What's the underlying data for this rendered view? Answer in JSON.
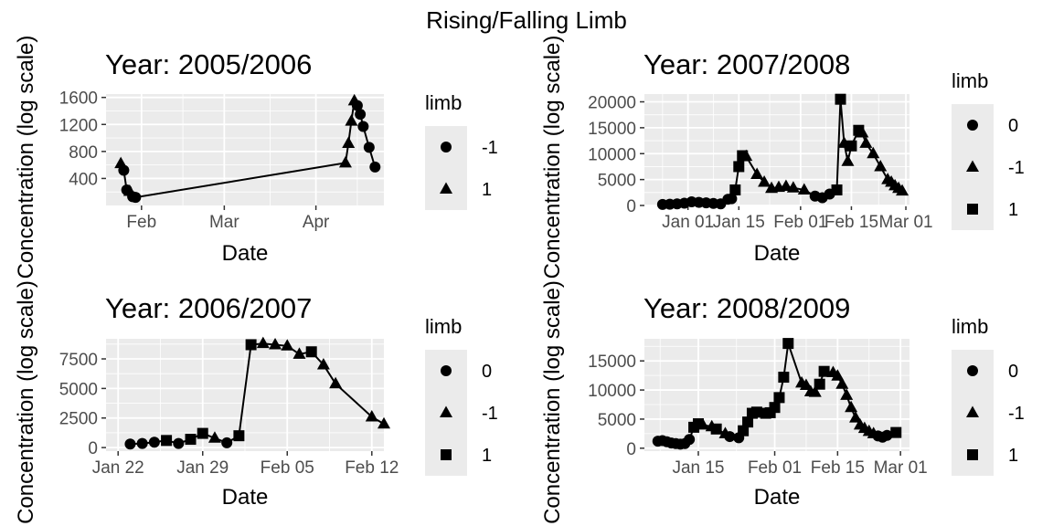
{
  "title": "Rising/Falling Limb",
  "chart_data": [
    {
      "type": "line",
      "title": "Year: 2005/2006",
      "xlabel": "Date",
      "ylabel": "Concentration (log scale)",
      "xaxis_type": "date",
      "xlim": [
        "2006-01-20",
        "2006-04-24"
      ],
      "ylim": [
        0,
        1650
      ],
      "x_ticks": [
        {
          "value": "2006-02-01",
          "label": "Feb"
        },
        {
          "value": "2006-03-01",
          "label": "Mar"
        },
        {
          "value": "2006-04-01",
          "label": "Apr"
        }
      ],
      "y_ticks": [
        400,
        800,
        1200,
        1600
      ],
      "legend": {
        "title": "limb",
        "entries": [
          {
            "label": "-1",
            "shape": "circle",
            "limb": "-1"
          },
          {
            "label": "1",
            "shape": "triangle",
            "limb": "1"
          }
        ]
      },
      "points": [
        {
          "x": "2006-01-25",
          "y": 620,
          "limb": "1"
        },
        {
          "x": "2006-01-26",
          "y": 520,
          "limb": "-1"
        },
        {
          "x": "2006-01-27",
          "y": 230,
          "limb": "-1"
        },
        {
          "x": "2006-01-28",
          "y": 210,
          "limb": "1"
        },
        {
          "x": "2006-01-29",
          "y": 130,
          "limb": "-1"
        },
        {
          "x": "2006-01-30",
          "y": 120,
          "limb": "-1"
        },
        {
          "x": "2006-04-11",
          "y": 630,
          "limb": "1"
        },
        {
          "x": "2006-04-12",
          "y": 920,
          "limb": "1"
        },
        {
          "x": "2006-04-13",
          "y": 1250,
          "limb": "1"
        },
        {
          "x": "2006-04-14",
          "y": 1550,
          "limb": "1"
        },
        {
          "x": "2006-04-15",
          "y": 1480,
          "limb": "-1"
        },
        {
          "x": "2006-04-16",
          "y": 1350,
          "limb": "-1"
        },
        {
          "x": "2006-04-17",
          "y": 1170,
          "limb": "-1"
        },
        {
          "x": "2006-04-19",
          "y": 860,
          "limb": "-1"
        },
        {
          "x": "2006-04-21",
          "y": 570,
          "limb": "-1"
        }
      ]
    },
    {
      "type": "line",
      "title": "Year: 2007/2008",
      "xlabel": "Date",
      "ylabel": "Concentration (log scale)",
      "xaxis_type": "date",
      "xlim": [
        "2007-12-20",
        "2008-03-02"
      ],
      "ylim": [
        0,
        21500
      ],
      "x_ticks": [
        {
          "value": "2008-01-01",
          "label": "Jan 01"
        },
        {
          "value": "2008-01-15",
          "label": "Jan 15"
        },
        {
          "value": "2008-02-01",
          "label": "Feb 01"
        },
        {
          "value": "2008-02-15",
          "label": "Feb 15"
        },
        {
          "value": "2008-03-01",
          "label": "Mar 01"
        }
      ],
      "y_ticks": [
        0,
        5000,
        10000,
        15000,
        20000
      ],
      "legend": {
        "title": "limb",
        "entries": [
          {
            "label": "0",
            "shape": "circle",
            "limb": "0"
          },
          {
            "label": "-1",
            "shape": "triangle",
            "limb": "-1"
          },
          {
            "label": "1",
            "shape": "square",
            "limb": "1"
          }
        ]
      },
      "points": [
        {
          "x": "2007-12-25",
          "y": 200,
          "limb": "0"
        },
        {
          "x": "2007-12-27",
          "y": 250,
          "limb": "0"
        },
        {
          "x": "2007-12-29",
          "y": 300,
          "limb": "0"
        },
        {
          "x": "2007-12-31",
          "y": 450,
          "limb": "0"
        },
        {
          "x": "2008-01-02",
          "y": 700,
          "limb": "0"
        },
        {
          "x": "2008-01-04",
          "y": 600,
          "limb": "0"
        },
        {
          "x": "2008-01-06",
          "y": 500,
          "limb": "0"
        },
        {
          "x": "2008-01-08",
          "y": 400,
          "limb": "0"
        },
        {
          "x": "2008-01-10",
          "y": 300,
          "limb": "0"
        },
        {
          "x": "2008-01-12",
          "y": 1200,
          "limb": "0"
        },
        {
          "x": "2008-01-13",
          "y": 1300,
          "limb": "0"
        },
        {
          "x": "2008-01-14",
          "y": 3000,
          "limb": "1"
        },
        {
          "x": "2008-01-15",
          "y": 7500,
          "limb": "1"
        },
        {
          "x": "2008-01-16",
          "y": 9600,
          "limb": "1"
        },
        {
          "x": "2008-01-17",
          "y": 9500,
          "limb": "-1"
        },
        {
          "x": "2008-01-20",
          "y": 6000,
          "limb": "-1"
        },
        {
          "x": "2008-01-22",
          "y": 4500,
          "limb": "-1"
        },
        {
          "x": "2008-01-24",
          "y": 3300,
          "limb": "-1"
        },
        {
          "x": "2008-01-26",
          "y": 3500,
          "limb": "-1"
        },
        {
          "x": "2008-01-28",
          "y": 3700,
          "limb": "-1"
        },
        {
          "x": "2008-01-30",
          "y": 3400,
          "limb": "-1"
        },
        {
          "x": "2008-02-02",
          "y": 3000,
          "limb": "-1"
        },
        {
          "x": "2008-02-05",
          "y": 1800,
          "limb": "0"
        },
        {
          "x": "2008-02-07",
          "y": 1500,
          "limb": "0"
        },
        {
          "x": "2008-02-09",
          "y": 2200,
          "limb": "0"
        },
        {
          "x": "2008-02-11",
          "y": 3000,
          "limb": "1"
        },
        {
          "x": "2008-02-12",
          "y": 20500,
          "limb": "1"
        },
        {
          "x": "2008-02-13",
          "y": 12000,
          "limb": "-1"
        },
        {
          "x": "2008-02-14",
          "y": 8500,
          "limb": "-1"
        },
        {
          "x": "2008-02-15",
          "y": 11500,
          "limb": "1"
        },
        {
          "x": "2008-02-17",
          "y": 14500,
          "limb": "1"
        },
        {
          "x": "2008-02-18",
          "y": 14000,
          "limb": "-1"
        },
        {
          "x": "2008-02-19",
          "y": 12000,
          "limb": "-1"
        },
        {
          "x": "2008-02-21",
          "y": 10000,
          "limb": "-1"
        },
        {
          "x": "2008-02-23",
          "y": 7500,
          "limb": "-1"
        },
        {
          "x": "2008-02-25",
          "y": 5000,
          "limb": "-1"
        },
        {
          "x": "2008-02-26",
          "y": 4500,
          "limb": "-1"
        },
        {
          "x": "2008-02-27",
          "y": 3800,
          "limb": "-1"
        },
        {
          "x": "2008-02-28",
          "y": 3300,
          "limb": "-1"
        },
        {
          "x": "2008-02-29",
          "y": 2800,
          "limb": "-1"
        }
      ]
    },
    {
      "type": "line",
      "title": "Year: 2006/2007",
      "xlabel": "Date",
      "ylabel": "Concentration (log scale)",
      "xaxis_type": "date",
      "xlim": [
        "2007-01-21",
        "2007-02-13"
      ],
      "ylim": [
        -300,
        9200
      ],
      "x_ticks": [
        {
          "value": "2007-01-22",
          "label": "Jan 22"
        },
        {
          "value": "2007-01-29",
          "label": "Jan 29"
        },
        {
          "value": "2007-02-05",
          "label": "Feb 05"
        },
        {
          "value": "2007-02-12",
          "label": "Feb 12"
        }
      ],
      "y_ticks": [
        0,
        2500,
        5000,
        7500
      ],
      "legend": {
        "title": "limb",
        "entries": [
          {
            "label": "0",
            "shape": "circle",
            "limb": "0"
          },
          {
            "label": "-1",
            "shape": "triangle",
            "limb": "-1"
          },
          {
            "label": "1",
            "shape": "square",
            "limb": "1"
          }
        ]
      },
      "points": [
        {
          "x": "2007-01-23",
          "y": 300,
          "limb": "0"
        },
        {
          "x": "2007-01-24",
          "y": 350,
          "limb": "0"
        },
        {
          "x": "2007-01-25",
          "y": 450,
          "limb": "0"
        },
        {
          "x": "2007-01-26",
          "y": 600,
          "limb": "1"
        },
        {
          "x": "2007-01-27",
          "y": 350,
          "limb": "0"
        },
        {
          "x": "2007-01-28",
          "y": 700,
          "limb": "1"
        },
        {
          "x": "2007-01-29",
          "y": 1200,
          "limb": "1"
        },
        {
          "x": "2007-01-30",
          "y": 800,
          "limb": "-1"
        },
        {
          "x": "2007-01-31",
          "y": 400,
          "limb": "0"
        },
        {
          "x": "2007-02-01",
          "y": 1000,
          "limb": "1"
        },
        {
          "x": "2007-02-02",
          "y": 8700,
          "limb": "1"
        },
        {
          "x": "2007-02-03",
          "y": 8800,
          "limb": "-1"
        },
        {
          "x": "2007-02-04",
          "y": 8700,
          "limb": "-1"
        },
        {
          "x": "2007-02-05",
          "y": 8600,
          "limb": "-1"
        },
        {
          "x": "2007-02-06",
          "y": 7900,
          "limb": "-1"
        },
        {
          "x": "2007-02-07",
          "y": 8100,
          "limb": "1"
        },
        {
          "x": "2007-02-08",
          "y": 7000,
          "limb": "-1"
        },
        {
          "x": "2007-02-09",
          "y": 5400,
          "limb": "-1"
        },
        {
          "x": "2007-02-12",
          "y": 2600,
          "limb": "-1"
        },
        {
          "x": "2007-02-13",
          "y": 2000,
          "limb": "-1"
        }
      ]
    },
    {
      "type": "line",
      "title": "Year: 2008/2009",
      "xlabel": "Date",
      "ylabel": "Concentration (log scale)",
      "xaxis_type": "date",
      "xlim": [
        "2009-01-03",
        "2009-03-03"
      ],
      "ylim": [
        -500,
        18800
      ],
      "x_ticks": [
        {
          "value": "2009-01-15",
          "label": "Jan 15"
        },
        {
          "value": "2009-02-01",
          "label": "Feb 01"
        },
        {
          "value": "2009-02-15",
          "label": "Feb 15"
        },
        {
          "value": "2009-03-01",
          "label": "Mar 01"
        }
      ],
      "y_ticks": [
        0,
        5000,
        10000,
        15000
      ],
      "legend": {
        "title": "limb",
        "entries": [
          {
            "label": "0",
            "shape": "circle",
            "limb": "0"
          },
          {
            "label": "-1",
            "shape": "triangle",
            "limb": "-1"
          },
          {
            "label": "1",
            "shape": "square",
            "limb": "1"
          }
        ]
      },
      "points": [
        {
          "x": "2009-01-06",
          "y": 1200,
          "limb": "0"
        },
        {
          "x": "2009-01-07",
          "y": 1300,
          "limb": "0"
        },
        {
          "x": "2009-01-08",
          "y": 1100,
          "limb": "0"
        },
        {
          "x": "2009-01-09",
          "y": 900,
          "limb": "0"
        },
        {
          "x": "2009-01-10",
          "y": 800,
          "limb": "0"
        },
        {
          "x": "2009-01-11",
          "y": 700,
          "limb": "0"
        },
        {
          "x": "2009-01-12",
          "y": 800,
          "limb": "0"
        },
        {
          "x": "2009-01-13",
          "y": 1500,
          "limb": "0"
        },
        {
          "x": "2009-01-14",
          "y": 3600,
          "limb": "1"
        },
        {
          "x": "2009-01-15",
          "y": 4200,
          "limb": "1"
        },
        {
          "x": "2009-01-16",
          "y": 4000,
          "limb": "-1"
        },
        {
          "x": "2009-01-18",
          "y": 3700,
          "limb": "-1"
        },
        {
          "x": "2009-01-19",
          "y": 3300,
          "limb": "1"
        },
        {
          "x": "2009-01-21",
          "y": 2500,
          "limb": "-1"
        },
        {
          "x": "2009-01-22",
          "y": 2000,
          "limb": "0"
        },
        {
          "x": "2009-01-24",
          "y": 1800,
          "limb": "0"
        },
        {
          "x": "2009-01-25",
          "y": 3000,
          "limb": "1"
        },
        {
          "x": "2009-01-26",
          "y": 4500,
          "limb": "1"
        },
        {
          "x": "2009-01-27",
          "y": 6000,
          "limb": "1"
        },
        {
          "x": "2009-01-28",
          "y": 6200,
          "limb": "1"
        },
        {
          "x": "2009-01-30",
          "y": 6000,
          "limb": "1"
        },
        {
          "x": "2009-01-31",
          "y": 6100,
          "limb": "1"
        },
        {
          "x": "2009-02-01",
          "y": 7000,
          "limb": "1"
        },
        {
          "x": "2009-02-02",
          "y": 8700,
          "limb": "1"
        },
        {
          "x": "2009-02-03",
          "y": 12200,
          "limb": "1"
        },
        {
          "x": "2009-02-04",
          "y": 18000,
          "limb": "1"
        },
        {
          "x": "2009-02-07",
          "y": 11200,
          "limb": "-1"
        },
        {
          "x": "2009-02-08",
          "y": 10800,
          "limb": "-1"
        },
        {
          "x": "2009-02-09",
          "y": 9700,
          "limb": "-1"
        },
        {
          "x": "2009-02-10",
          "y": 9600,
          "limb": "-1"
        },
        {
          "x": "2009-02-11",
          "y": 11000,
          "limb": "1"
        },
        {
          "x": "2009-02-12",
          "y": 13200,
          "limb": "1"
        },
        {
          "x": "2009-02-14",
          "y": 13000,
          "limb": "-1"
        },
        {
          "x": "2009-02-15",
          "y": 12400,
          "limb": "-1"
        },
        {
          "x": "2009-02-16",
          "y": 11000,
          "limb": "-1"
        },
        {
          "x": "2009-02-17",
          "y": 9100,
          "limb": "-1"
        },
        {
          "x": "2009-02-18",
          "y": 7000,
          "limb": "-1"
        },
        {
          "x": "2009-02-19",
          "y": 5200,
          "limb": "-1"
        },
        {
          "x": "2009-02-20",
          "y": 4000,
          "limb": "-1"
        },
        {
          "x": "2009-02-21",
          "y": 3400,
          "limb": "-1"
        },
        {
          "x": "2009-02-22",
          "y": 2900,
          "limb": "-1"
        },
        {
          "x": "2009-02-23",
          "y": 2500,
          "limb": "-1"
        },
        {
          "x": "2009-02-24",
          "y": 2100,
          "limb": "0"
        },
        {
          "x": "2009-02-25",
          "y": 1900,
          "limb": "0"
        },
        {
          "x": "2009-02-26",
          "y": 2200,
          "limb": "0"
        },
        {
          "x": "2009-02-28",
          "y": 2700,
          "limb": "1"
        }
      ]
    }
  ]
}
